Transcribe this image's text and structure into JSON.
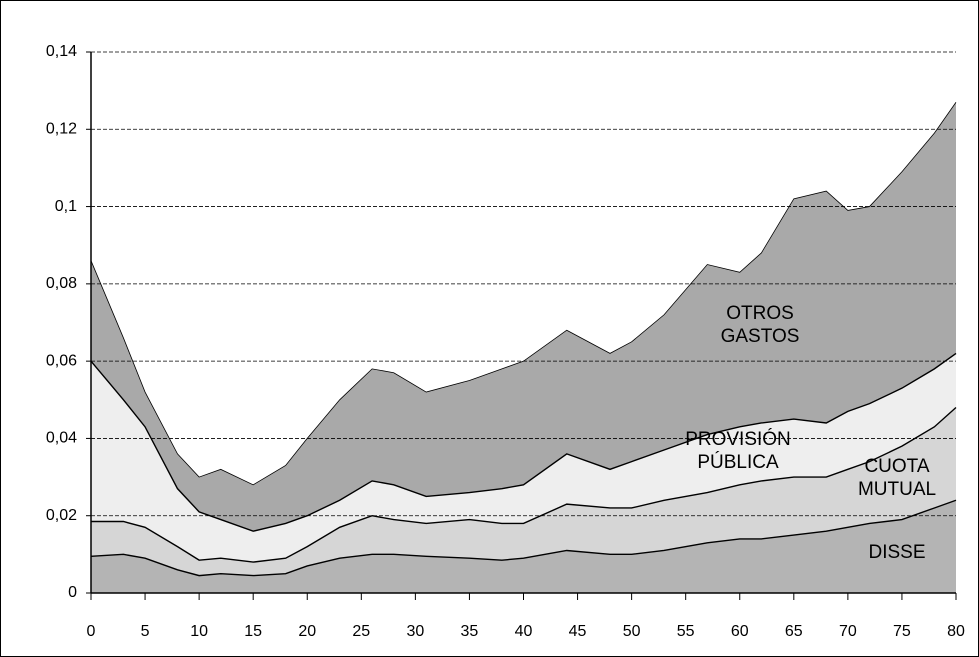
{
  "chart_data": {
    "type": "stacked-area",
    "x": [
      0,
      3,
      5,
      8,
      10,
      12,
      15,
      18,
      20,
      23,
      26,
      28,
      31,
      35,
      38,
      40,
      44,
      48,
      50,
      53,
      57,
      60,
      62,
      65,
      68,
      70,
      72,
      75,
      78,
      80
    ],
    "series": [
      {
        "name": "DISSE",
        "color": "#b4b4b4",
        "values": [
          0.0095,
          0.01,
          0.009,
          0.006,
          0.0045,
          0.005,
          0.0045,
          0.005,
          0.007,
          0.009,
          0.01,
          0.01,
          0.0095,
          0.009,
          0.0085,
          0.009,
          0.011,
          0.01,
          0.01,
          0.011,
          0.013,
          0.014,
          0.014,
          0.015,
          0.016,
          0.017,
          0.018,
          0.019,
          0.022,
          0.024
        ]
      },
      {
        "name": "CUOTA MUTUAL",
        "color": "#d6d6d6",
        "values": [
          0.009,
          0.0085,
          0.008,
          0.006,
          0.004,
          0.004,
          0.0035,
          0.004,
          0.005,
          0.008,
          0.01,
          0.009,
          0.0085,
          0.01,
          0.0095,
          0.009,
          0.012,
          0.012,
          0.012,
          0.013,
          0.013,
          0.014,
          0.015,
          0.015,
          0.014,
          0.015,
          0.016,
          0.019,
          0.021,
          0.024
        ]
      },
      {
        "name": "PROVISIÓN PÚBLICA",
        "color": "#eeeeee",
        "values": [
          0.0415,
          0.0315,
          0.026,
          0.015,
          0.0125,
          0.01,
          0.008,
          0.009,
          0.008,
          0.007,
          0.009,
          0.009,
          0.007,
          0.007,
          0.009,
          0.01,
          0.013,
          0.01,
          0.012,
          0.013,
          0.015,
          0.015,
          0.015,
          0.015,
          0.014,
          0.015,
          0.015,
          0.015,
          0.015,
          0.014
        ]
      },
      {
        "name": "OTROS GASTOS",
        "color": "#a9a9a9",
        "values": [
          0.026,
          0.016,
          0.009,
          0.009,
          0.009,
          0.013,
          0.012,
          0.015,
          0.02,
          0.026,
          0.029,
          0.029,
          0.027,
          0.029,
          0.031,
          0.032,
          0.032,
          0.03,
          0.031,
          0.035,
          0.044,
          0.04,
          0.044,
          0.057,
          0.06,
          0.052,
          0.051,
          0.056,
          0.061,
          0.065
        ]
      }
    ],
    "xlim": [
      0,
      80
    ],
    "xticks": [
      0,
      5,
      10,
      15,
      20,
      25,
      30,
      35,
      40,
      45,
      50,
      55,
      60,
      65,
      70,
      75,
      80
    ],
    "ylim": [
      0,
      0.14
    ],
    "yticks": [
      0,
      {
        "value": 0.02,
        "label": "0,02"
      },
      {
        "value": 0.04,
        "label": "0,04"
      },
      {
        "value": 0.06,
        "label": "0,06"
      },
      {
        "value": 0.08,
        "label": "0,08"
      },
      {
        "value": 0.1,
        "label": "0,1"
      },
      {
        "value": 0.12,
        "label": "0,12"
      },
      {
        "value": 0.14,
        "label": "0,14"
      }
    ],
    "grid": true
  }
}
